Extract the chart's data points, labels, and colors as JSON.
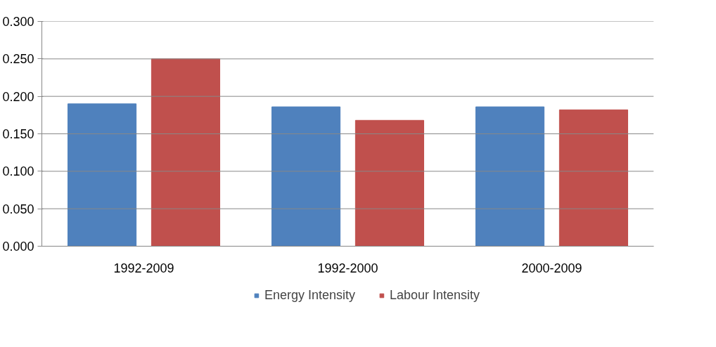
{
  "chart_data": {
    "type": "bar",
    "categories": [
      "1992-2009",
      "1992-2000",
      "2000-2009"
    ],
    "series": [
      {
        "name": "Energy Intensity",
        "color": "#4f81bd",
        "values": [
          0.19,
          0.186,
          0.186
        ]
      },
      {
        "name": "Labour Intensity",
        "color": "#c0504d",
        "values": [
          0.25,
          0.168,
          0.182
        ]
      }
    ],
    "ylim": [
      0,
      0.3
    ],
    "yticks": [
      {
        "value": 0,
        "label": "0.000"
      },
      {
        "value": 0.05,
        "label": "0.050"
      },
      {
        "value": 0.1,
        "label": "0.100"
      },
      {
        "value": 0.15,
        "label": "0.150"
      },
      {
        "value": 0.2,
        "label": "0.200"
      },
      {
        "value": 0.25,
        "label": "0.250"
      },
      {
        "value": 0.3,
        "label": "0.300"
      }
    ],
    "grid": "y",
    "legend": "bottom"
  }
}
